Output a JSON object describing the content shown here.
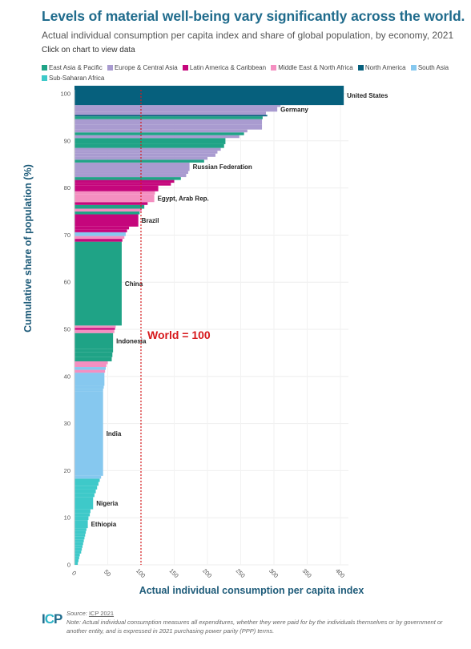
{
  "header": {
    "title": "Levels of material well-being vary significantly across the world.",
    "subtitle": "Actual individual consumption per capita index and share of global population, by economy, 2021",
    "hint": "Click on chart to view data"
  },
  "legend": [
    {
      "label": "East Asia & Pacific",
      "color": "#1fa386"
    },
    {
      "label": "Europe & Central Asia",
      "color": "#a99bd0"
    },
    {
      "label": "Latin America & Caribbean",
      "color": "#c5067c"
    },
    {
      "label": "Middle East & North Africa",
      "color": "#f48fc1"
    },
    {
      "label": "North America",
      "color": "#06607d"
    },
    {
      "label": "South Asia",
      "color": "#86c8ef"
    },
    {
      "label": "Sub-Saharan Africa",
      "color": "#3ec9c9"
    }
  ],
  "footer": {
    "source_prefix": "Source: ",
    "source_link": "ICP 2021",
    "note": "Note: Actual individual consumption measures all expenditures, whether they were paid for by the individuals themselves or by government or another entity, and is expressed in 2021 purchasing power parity (PPP) terms.",
    "logo_a": "I",
    "logo_b": "C",
    "logo_c": "P"
  },
  "chart_data": {
    "type": "bar",
    "orientation": "horizontal-variable-width",
    "xlabel": "Actual individual consumption per capita index",
    "ylabel": "Cumulative share of population (%)",
    "xlim": [
      0,
      400
    ],
    "ylim": [
      0,
      100
    ],
    "xticks": [
      0,
      50,
      100,
      150,
      200,
      250,
      300,
      350,
      400
    ],
    "yticks": [
      0,
      10,
      20,
      30,
      40,
      50,
      60,
      70,
      80,
      90,
      100
    ],
    "reference_line": {
      "x": 100,
      "label": "World = 100",
      "color": "#d7191c"
    },
    "colors": {
      "EAP": "#1fa386",
      "ECA": "#a99bd0",
      "LAC": "#c5067c",
      "MNA": "#f48fc1",
      "NA": "#06607d",
      "SA": "#86c8ef",
      "SSA": "#3ec9c9"
    },
    "bars": [
      {
        "y0": 0.0,
        "y1": 0.6,
        "value": 5,
        "region": "SSA"
      },
      {
        "y0": 0.6,
        "y1": 1.2,
        "value": 6,
        "region": "SSA"
      },
      {
        "y0": 1.2,
        "y1": 1.8,
        "value": 7,
        "region": "SSA"
      },
      {
        "y0": 1.8,
        "y1": 2.4,
        "value": 8,
        "region": "SSA"
      },
      {
        "y0": 2.4,
        "y1": 3.0,
        "value": 10,
        "region": "SSA"
      },
      {
        "y0": 3.0,
        "y1": 3.6,
        "value": 11,
        "region": "SSA"
      },
      {
        "y0": 3.6,
        "y1": 4.2,
        "value": 12,
        "region": "SSA"
      },
      {
        "y0": 4.2,
        "y1": 4.8,
        "value": 13,
        "region": "SSA"
      },
      {
        "y0": 4.8,
        "y1": 5.4,
        "value": 14,
        "region": "SSA"
      },
      {
        "y0": 5.4,
        "y1": 6.0,
        "value": 15,
        "region": "SSA"
      },
      {
        "y0": 6.0,
        "y1": 6.6,
        "value": 16,
        "region": "SSA"
      },
      {
        "y0": 6.6,
        "y1": 7.2,
        "value": 17,
        "region": "SSA"
      },
      {
        "y0": 7.2,
        "y1": 7.8,
        "value": 18,
        "region": "SSA"
      },
      {
        "y0": 7.8,
        "y1": 9.5,
        "value": 20,
        "region": "SSA",
        "label": "Ethiopia"
      },
      {
        "y0": 9.5,
        "y1": 10.3,
        "value": 21,
        "region": "SSA"
      },
      {
        "y0": 10.3,
        "y1": 11.0,
        "value": 23,
        "region": "SSA"
      },
      {
        "y0": 11.0,
        "y1": 11.8,
        "value": 24,
        "region": "SSA"
      },
      {
        "y0": 11.8,
        "y1": 14.4,
        "value": 28,
        "region": "SSA",
        "label": "Nigeria"
      },
      {
        "y0": 14.4,
        "y1": 15.2,
        "value": 30,
        "region": "SSA"
      },
      {
        "y0": 15.2,
        "y1": 16.0,
        "value": 32,
        "region": "SSA"
      },
      {
        "y0": 16.0,
        "y1": 16.8,
        "value": 34,
        "region": "SSA"
      },
      {
        "y0": 16.8,
        "y1": 17.6,
        "value": 36,
        "region": "SSA"
      },
      {
        "y0": 17.6,
        "y1": 18.3,
        "value": 38,
        "region": "SSA"
      },
      {
        "y0": 18.3,
        "y1": 18.9,
        "value": 40,
        "region": "SA"
      },
      {
        "y0": 18.9,
        "y1": 36.8,
        "value": 43,
        "region": "SA",
        "label": "India"
      },
      {
        "y0": 36.8,
        "y1": 37.4,
        "value": 43,
        "region": "SA"
      },
      {
        "y0": 37.4,
        "y1": 38.0,
        "value": 44,
        "region": "SA"
      },
      {
        "y0": 38.0,
        "y1": 40.8,
        "value": 45,
        "region": "SA"
      },
      {
        "y0": 40.8,
        "y1": 41.4,
        "value": 46,
        "region": "MNA"
      },
      {
        "y0": 41.4,
        "y1": 42.0,
        "value": 47,
        "region": "SA"
      },
      {
        "y0": 42.0,
        "y1": 42.6,
        "value": 48,
        "region": "MNA"
      },
      {
        "y0": 42.6,
        "y1": 43.2,
        "value": 50,
        "region": "MNA"
      },
      {
        "y0": 43.2,
        "y1": 44.1,
        "value": 56,
        "region": "EAP"
      },
      {
        "y0": 44.1,
        "y1": 45.1,
        "value": 57,
        "region": "EAP"
      },
      {
        "y0": 45.1,
        "y1": 45.8,
        "value": 58,
        "region": "EAP"
      },
      {
        "y0": 45.8,
        "y1": 49.2,
        "value": 58,
        "region": "EAP",
        "label": "Indonesia"
      },
      {
        "y0": 49.2,
        "y1": 49.9,
        "value": 60,
        "region": "MNA"
      },
      {
        "y0": 49.9,
        "y1": 50.3,
        "value": 61,
        "region": "LAC"
      },
      {
        "y0": 50.3,
        "y1": 50.8,
        "value": 62,
        "region": "MNA"
      },
      {
        "y0": 50.8,
        "y1": 68.6,
        "value": 71,
        "region": "EAP",
        "label": "China"
      },
      {
        "y0": 68.6,
        "y1": 69.2,
        "value": 72,
        "region": "LAC"
      },
      {
        "y0": 69.2,
        "y1": 69.8,
        "value": 75,
        "region": "MNA"
      },
      {
        "y0": 69.8,
        "y1": 70.6,
        "value": 77,
        "region": "SA"
      },
      {
        "y0": 70.6,
        "y1": 71.2,
        "value": 79,
        "region": "LAC"
      },
      {
        "y0": 71.2,
        "y1": 71.8,
        "value": 82,
        "region": "LAC"
      },
      {
        "y0": 71.8,
        "y1": 74.4,
        "value": 96,
        "region": "LAC",
        "label": "Brazil"
      },
      {
        "y0": 74.4,
        "y1": 75.0,
        "value": 98,
        "region": "EAP"
      },
      {
        "y0": 75.0,
        "y1": 75.6,
        "value": 101,
        "region": "MNA"
      },
      {
        "y0": 75.6,
        "y1": 76.4,
        "value": 105,
        "region": "EAP"
      },
      {
        "y0": 76.4,
        "y1": 77.0,
        "value": 110,
        "region": "LAC"
      },
      {
        "y0": 77.0,
        "y1": 78.6,
        "value": 120,
        "region": "MNA",
        "label": "Egypt, Arab Rep."
      },
      {
        "y0": 78.6,
        "y1": 79.3,
        "value": 121,
        "region": "MNA"
      },
      {
        "y0": 79.3,
        "y1": 80.5,
        "value": 126,
        "region": "LAC"
      },
      {
        "y0": 80.5,
        "y1": 81.1,
        "value": 145,
        "region": "LAC"
      },
      {
        "y0": 81.1,
        "y1": 81.7,
        "value": 150,
        "region": "LAC"
      },
      {
        "y0": 81.7,
        "y1": 82.3,
        "value": 160,
        "region": "EAP"
      },
      {
        "y0": 82.3,
        "y1": 83.0,
        "value": 168,
        "region": "ECA"
      },
      {
        "y0": 83.0,
        "y1": 83.6,
        "value": 171,
        "region": "ECA"
      },
      {
        "y0": 83.6,
        "y1": 85.4,
        "value": 173,
        "region": "ECA",
        "label": "Russian Federation"
      },
      {
        "y0": 85.4,
        "y1": 86.0,
        "value": 195,
        "region": "EAP"
      },
      {
        "y0": 86.0,
        "y1": 86.6,
        "value": 200,
        "region": "ECA"
      },
      {
        "y0": 86.6,
        "y1": 87.3,
        "value": 212,
        "region": "ECA"
      },
      {
        "y0": 87.3,
        "y1": 87.9,
        "value": 215,
        "region": "ECA"
      },
      {
        "y0": 87.9,
        "y1": 88.5,
        "value": 220,
        "region": "ECA"
      },
      {
        "y0": 88.5,
        "y1": 89.3,
        "value": 225,
        "region": "EAP"
      },
      {
        "y0": 89.3,
        "y1": 90.6,
        "value": 227,
        "region": "EAP"
      },
      {
        "y0": 90.6,
        "y1": 91.2,
        "value": 248,
        "region": "ECA"
      },
      {
        "y0": 91.2,
        "y1": 91.8,
        "value": 255,
        "region": "EAP"
      },
      {
        "y0": 91.8,
        "y1": 92.4,
        "value": 260,
        "region": "ECA"
      },
      {
        "y0": 92.4,
        "y1": 93.4,
        "value": 282,
        "region": "ECA"
      },
      {
        "y0": 93.4,
        "y1": 94.6,
        "value": 282,
        "region": "ECA"
      },
      {
        "y0": 94.6,
        "y1": 95.2,
        "value": 283,
        "region": "EAP"
      },
      {
        "y0": 95.2,
        "y1": 95.5,
        "value": 290,
        "region": "NA"
      },
      {
        "y0": 95.5,
        "y1": 96.2,
        "value": 288,
        "region": "ECA"
      },
      {
        "y0": 96.2,
        "y1": 97.2,
        "value": 305,
        "region": "ECA",
        "label": "Germany"
      },
      {
        "y0": 97.2,
        "y1": 97.6,
        "value": 310,
        "region": "ECA"
      },
      {
        "y0": 97.6,
        "y1": 101.7,
        "value": 405,
        "region": "NA",
        "label": "United States"
      }
    ]
  }
}
